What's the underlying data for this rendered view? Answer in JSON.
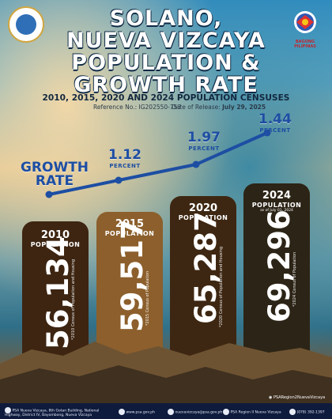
{
  "title": [
    "SOLANO,",
    "NUEVA VIZCAYA",
    "POPULATION &",
    "GROWTH RATE"
  ],
  "subtitle": "2010, 2015, 2020 AND 2024 POPULATION CENSUSES",
  "reference": "Reference No.: IG202550-753",
  "release": "Date of Release: ",
  "release_date": "July 29, 2025",
  "growth_label": [
    "GROWTH",
    "RATE"
  ],
  "growth": [
    {
      "value": "1.12",
      "unit": "PERCENT"
    },
    {
      "value": "1.97",
      "unit": "PERCENT"
    },
    {
      "value": "1.44",
      "unit": "PERCENT"
    }
  ],
  "cards": [
    {
      "year": "2010",
      "label": "POPULATION",
      "as_of": "",
      "value": "56,134",
      "source": "*2010 Census of Population and Housing",
      "color": "#3d2512"
    },
    {
      "year": "2015",
      "label": "POPULATION",
      "as_of": "",
      "value": "59,517",
      "source": "*2015 Census of Population",
      "color": "#8c5f2c"
    },
    {
      "year": "2020",
      "label": "POPULATION",
      "as_of": "",
      "value": "65,287",
      "source": "*2020 Census of Population and Housing",
      "color": "#3e2712"
    },
    {
      "year": "2024",
      "label": "POPULATION",
      "as_of": "as of July 01, 2024",
      "value": "69,296",
      "source": "*2024 Census of Population",
      "color": "#2c2416"
    }
  ],
  "bagong_pilipinas": "BAGONG PILIPINAS",
  "handle": "PSARegion2NuevaVizcaya",
  "footer": [
    "PSA Nueva Vizcaya, 8th Gotan Building, National Highway, District IV, Bayombong, Nueva Vizcaya",
    "www.psa.gov.ph",
    "nuevavizcaya@psa.gov.ph",
    "PSA Region II Nueva Vizcaya",
    "(078) 392-1397"
  ],
  "colors": {
    "title_outline": "#0f2a46",
    "accent_blue": "#1d4ea3",
    "footer_bg": "#0f1b3d"
  }
}
